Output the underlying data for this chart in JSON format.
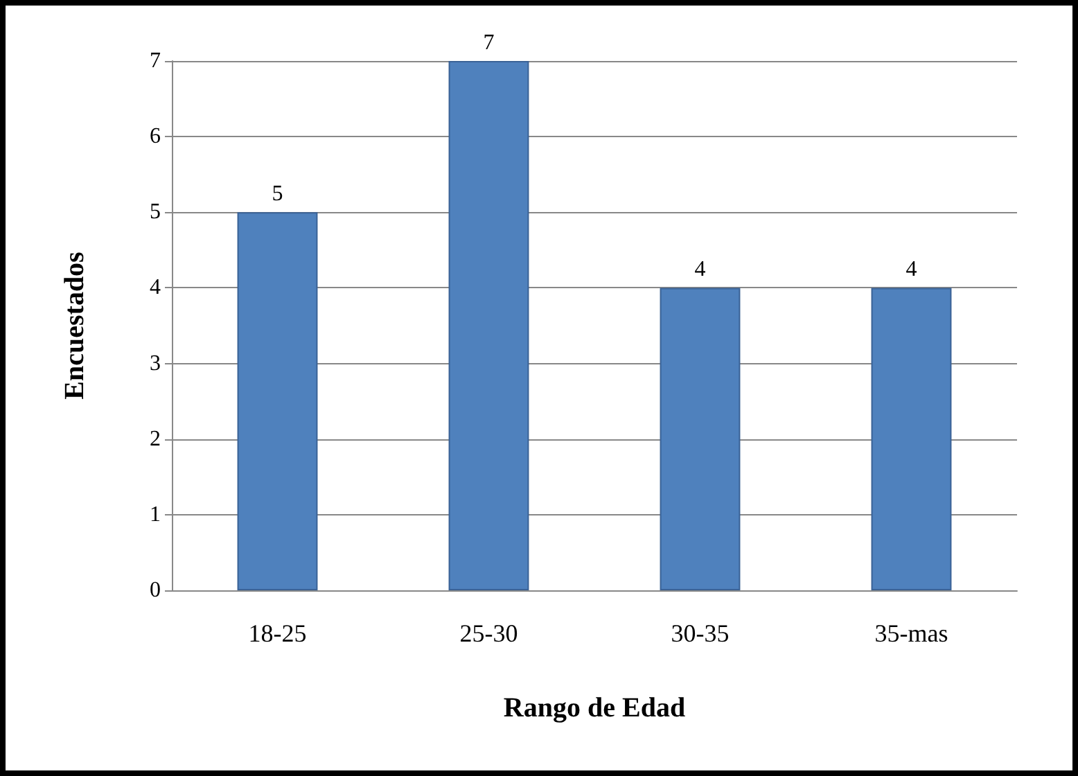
{
  "chart_data": {
    "type": "bar",
    "categories": [
      "18-25",
      "25-30",
      "30-35",
      "35-mas"
    ],
    "values": [
      5,
      7,
      4,
      4
    ],
    "color": "#4f81bd",
    "xlabel": "Rango de Edad",
    "ylabel": "Encuestados",
    "ylim": [
      0,
      7
    ],
    "yticks": [
      0,
      1,
      2,
      3,
      4,
      5,
      6,
      7
    ],
    "grid": "y",
    "data_labels": true
  }
}
